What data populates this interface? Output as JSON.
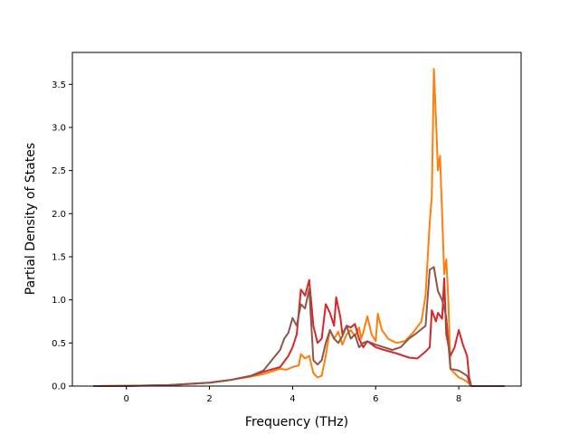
{
  "chart_data": {
    "type": "line",
    "title": "",
    "xlabel": "Frequency (THz)",
    "ylabel": "Partial Density of States",
    "xlim": [
      -1.3,
      9.5
    ],
    "ylim": [
      0,
      3.87
    ],
    "xticks": [
      0,
      2,
      4,
      6,
      8
    ],
    "xtick_labels": [
      "0",
      "2",
      "4",
      "6",
      "8"
    ],
    "yticks": [
      0.0,
      0.5,
      1.0,
      1.5,
      2.0,
      2.5,
      3.0,
      3.5
    ],
    "ytick_labels": [
      "0.0",
      "0.5",
      "1.0",
      "1.5",
      "2.0",
      "2.5",
      "3.0",
      "3.5"
    ],
    "grid": false,
    "legend": "none",
    "series": [
      {
        "color": "#ff7f0e",
        "points": [
          [
            -0.8,
            0
          ],
          [
            0,
            0.002
          ],
          [
            1,
            0.01
          ],
          [
            2,
            0.04
          ],
          [
            2.5,
            0.07
          ],
          [
            3.0,
            0.11
          ],
          [
            3.3,
            0.14
          ],
          [
            3.5,
            0.17
          ],
          [
            3.7,
            0.2
          ],
          [
            3.85,
            0.19
          ],
          [
            4.0,
            0.22
          ],
          [
            4.15,
            0.24
          ],
          [
            4.2,
            0.37
          ],
          [
            4.3,
            0.32
          ],
          [
            4.4,
            0.35
          ],
          [
            4.5,
            0.15
          ],
          [
            4.6,
            0.1
          ],
          [
            4.7,
            0.12
          ],
          [
            4.8,
            0.35
          ],
          [
            4.9,
            0.65
          ],
          [
            5.0,
            0.55
          ],
          [
            5.1,
            0.63
          ],
          [
            5.2,
            0.48
          ],
          [
            5.3,
            0.6
          ],
          [
            5.4,
            0.65
          ],
          [
            5.5,
            0.58
          ],
          [
            5.6,
            0.68
          ],
          [
            5.65,
            0.55
          ],
          [
            5.7,
            0.62
          ],
          [
            5.8,
            0.81
          ],
          [
            5.9,
            0.6
          ],
          [
            6.0,
            0.52
          ],
          [
            6.05,
            0.84
          ],
          [
            6.15,
            0.65
          ],
          [
            6.3,
            0.55
          ],
          [
            6.5,
            0.5
          ],
          [
            6.7,
            0.52
          ],
          [
            6.9,
            0.62
          ],
          [
            7.1,
            0.75
          ],
          [
            7.2,
            1.05
          ],
          [
            7.3,
            1.9
          ],
          [
            7.35,
            2.2
          ],
          [
            7.4,
            3.68
          ],
          [
            7.45,
            3.1
          ],
          [
            7.5,
            2.5
          ],
          [
            7.55,
            2.67
          ],
          [
            7.6,
            2.0
          ],
          [
            7.65,
            1.3
          ],
          [
            7.7,
            1.47
          ],
          [
            7.75,
            1.0
          ],
          [
            7.8,
            0.2
          ],
          [
            8.0,
            0.1
          ],
          [
            8.1,
            0.08
          ],
          [
            8.2,
            0.05
          ],
          [
            8.3,
            0
          ],
          [
            9.1,
            0
          ]
        ]
      },
      {
        "color": "#d62728",
        "points": [
          [
            -0.8,
            0
          ],
          [
            0,
            0.001
          ],
          [
            1,
            0.01
          ],
          [
            2,
            0.04
          ],
          [
            2.5,
            0.07
          ],
          [
            3.0,
            0.12
          ],
          [
            3.4,
            0.18
          ],
          [
            3.7,
            0.22
          ],
          [
            3.9,
            0.35
          ],
          [
            4.0,
            0.45
          ],
          [
            4.1,
            0.6
          ],
          [
            4.2,
            1.12
          ],
          [
            4.3,
            1.05
          ],
          [
            4.4,
            1.23
          ],
          [
            4.5,
            0.7
          ],
          [
            4.6,
            0.5
          ],
          [
            4.7,
            0.55
          ],
          [
            4.8,
            0.95
          ],
          [
            4.9,
            0.85
          ],
          [
            5.0,
            0.7
          ],
          [
            5.05,
            1.03
          ],
          [
            5.15,
            0.8
          ],
          [
            5.2,
            0.6
          ],
          [
            5.3,
            0.7
          ],
          [
            5.4,
            0.68
          ],
          [
            5.5,
            0.72
          ],
          [
            5.6,
            0.55
          ],
          [
            5.7,
            0.45
          ],
          [
            5.8,
            0.52
          ],
          [
            6.0,
            0.45
          ],
          [
            6.2,
            0.42
          ],
          [
            6.5,
            0.38
          ],
          [
            6.8,
            0.33
          ],
          [
            7.0,
            0.32
          ],
          [
            7.2,
            0.4
          ],
          [
            7.3,
            0.45
          ],
          [
            7.35,
            0.88
          ],
          [
            7.45,
            0.75
          ],
          [
            7.5,
            0.85
          ],
          [
            7.6,
            0.78
          ],
          [
            7.65,
            1.25
          ],
          [
            7.7,
            0.6
          ],
          [
            7.8,
            0.35
          ],
          [
            7.9,
            0.45
          ],
          [
            8.0,
            0.65
          ],
          [
            8.1,
            0.48
          ],
          [
            8.2,
            0.35
          ],
          [
            8.25,
            0.1
          ],
          [
            8.3,
            0
          ],
          [
            9.1,
            0
          ]
        ]
      },
      {
        "color": "#8c564b",
        "points": [
          [
            -0.8,
            0
          ],
          [
            0,
            0.002
          ],
          [
            1,
            0.01
          ],
          [
            2,
            0.04
          ],
          [
            2.5,
            0.07
          ],
          [
            3.0,
            0.12
          ],
          [
            3.3,
            0.18
          ],
          [
            3.5,
            0.3
          ],
          [
            3.7,
            0.42
          ],
          [
            3.8,
            0.55
          ],
          [
            3.9,
            0.62
          ],
          [
            4.0,
            0.79
          ],
          [
            4.1,
            0.7
          ],
          [
            4.2,
            0.95
          ],
          [
            4.3,
            0.9
          ],
          [
            4.4,
            1.13
          ],
          [
            4.5,
            0.3
          ],
          [
            4.6,
            0.25
          ],
          [
            4.7,
            0.3
          ],
          [
            4.8,
            0.5
          ],
          [
            4.9,
            0.65
          ],
          [
            5.0,
            0.55
          ],
          [
            5.1,
            0.5
          ],
          [
            5.2,
            0.58
          ],
          [
            5.3,
            0.7
          ],
          [
            5.4,
            0.55
          ],
          [
            5.5,
            0.6
          ],
          [
            5.6,
            0.45
          ],
          [
            5.7,
            0.5
          ],
          [
            5.8,
            0.52
          ],
          [
            6.0,
            0.48
          ],
          [
            6.2,
            0.45
          ],
          [
            6.4,
            0.42
          ],
          [
            6.6,
            0.45
          ],
          [
            6.8,
            0.55
          ],
          [
            7.0,
            0.62
          ],
          [
            7.2,
            0.7
          ],
          [
            7.3,
            1.35
          ],
          [
            7.4,
            1.38
          ],
          [
            7.5,
            1.1
          ],
          [
            7.6,
            1.0
          ],
          [
            7.7,
            0.8
          ],
          [
            7.8,
            0.2
          ],
          [
            8.0,
            0.18
          ],
          [
            8.1,
            0.15
          ],
          [
            8.2,
            0.12
          ],
          [
            8.25,
            0.05
          ],
          [
            8.3,
            0
          ],
          [
            9.1,
            0
          ]
        ]
      }
    ]
  }
}
